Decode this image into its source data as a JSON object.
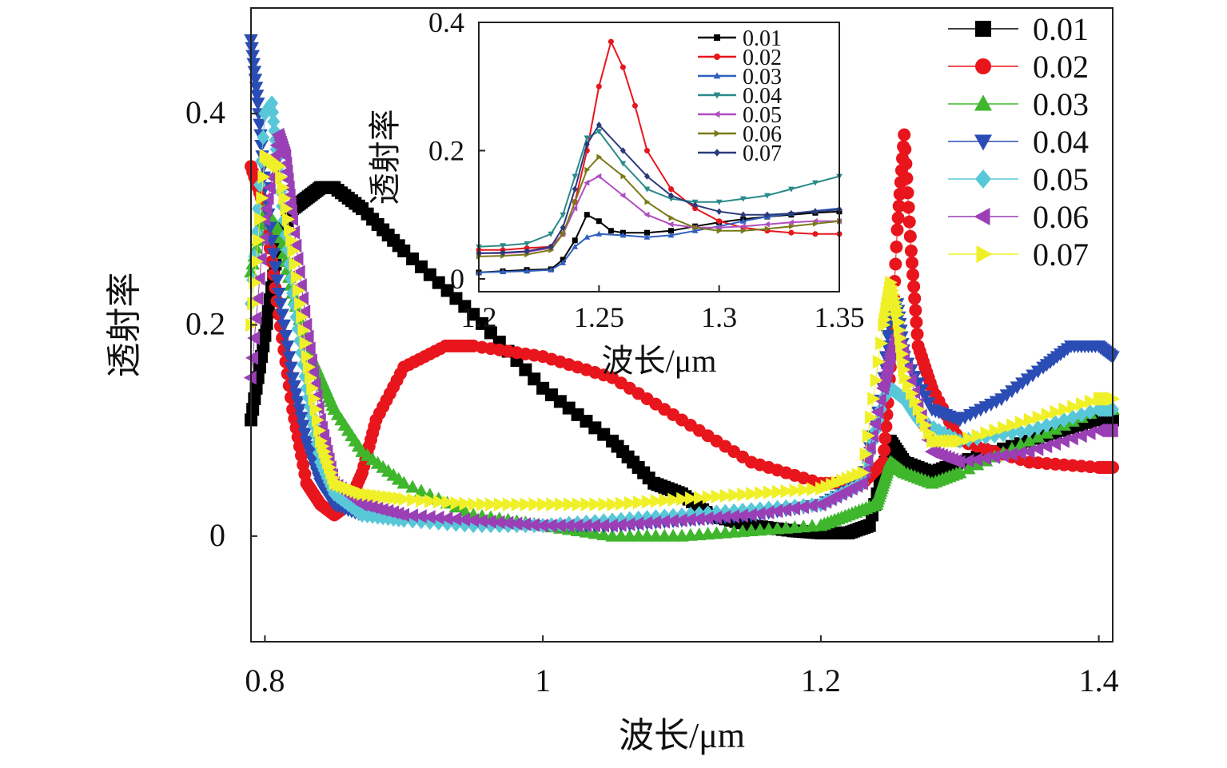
{
  "chart_data": [
    {
      "type": "scatter",
      "xlabel": "波长/μm",
      "ylabel": "透射率",
      "xlim": [
        0.79,
        1.41
      ],
      "ylim": [
        -0.1,
        0.5
      ],
      "xticks": [
        0.8,
        1,
        1.2,
        1.4
      ],
      "yticks": [
        0,
        0.2,
        0.4
      ],
      "xtick_labels": [
        "0.8",
        "1",
        "1.2",
        "1.4"
      ],
      "ytick_labels": [
        "0",
        "0.2",
        "0.4"
      ],
      "grid": false,
      "legend_position": "top-right",
      "series": [
        {
          "name": "0.01",
          "color": "#000000",
          "marker": "square",
          "x": [
            0.79,
            0.8,
            0.81,
            0.82,
            0.83,
            0.84,
            0.85,
            0.87,
            0.9,
            0.95,
            1.0,
            1.05,
            1.08,
            1.1,
            1.12,
            1.15,
            1.18,
            1.2,
            1.22,
            1.235,
            1.25,
            1.26,
            1.28,
            1.3,
            1.35,
            1.4,
            1.41
          ],
          "y": [
            0.11,
            0.19,
            0.28,
            0.31,
            0.32,
            0.33,
            0.33,
            0.31,
            0.27,
            0.21,
            0.14,
            0.09,
            0.05,
            0.04,
            0.02,
            0.01,
            0.005,
            0.003,
            0.003,
            0.01,
            0.09,
            0.07,
            0.06,
            0.07,
            0.09,
            0.11,
            0.11
          ]
        },
        {
          "name": "0.02",
          "color": "#e8151c",
          "marker": "circle",
          "x": [
            0.79,
            0.8,
            0.81,
            0.82,
            0.83,
            0.84,
            0.85,
            0.86,
            0.87,
            0.88,
            0.9,
            0.93,
            0.95,
            1.0,
            1.05,
            1.1,
            1.15,
            1.2,
            1.23,
            1.245,
            1.25,
            1.255,
            1.26,
            1.265,
            1.27,
            1.28,
            1.3,
            1.35,
            1.4,
            1.41
          ],
          "y": [
            0.35,
            0.31,
            0.21,
            0.12,
            0.05,
            0.03,
            0.02,
            0.03,
            0.06,
            0.11,
            0.16,
            0.18,
            0.18,
            0.17,
            0.15,
            0.11,
            0.07,
            0.05,
            0.05,
            0.07,
            0.16,
            0.29,
            0.38,
            0.27,
            0.18,
            0.14,
            0.09,
            0.07,
            0.065,
            0.065
          ]
        },
        {
          "name": "0.03",
          "color": "#3fb62c",
          "marker": "triangle-up",
          "x": [
            0.79,
            0.8,
            0.81,
            0.82,
            0.83,
            0.84,
            0.85,
            0.87,
            0.9,
            0.95,
            1.0,
            1.05,
            1.1,
            1.15,
            1.2,
            1.22,
            1.24,
            1.245,
            1.25,
            1.26,
            1.28,
            1.3,
            1.35,
            1.4,
            1.41
          ],
          "y": [
            0.25,
            0.31,
            0.29,
            0.23,
            0.18,
            0.15,
            0.12,
            0.08,
            0.05,
            0.02,
            0.01,
            0.0,
            0.0,
            0.005,
            0.01,
            0.02,
            0.03,
            0.05,
            0.07,
            0.06,
            0.05,
            0.06,
            0.09,
            0.12,
            0.12
          ]
        },
        {
          "name": "0.04",
          "color": "#2a4db5",
          "marker": "triangle-down",
          "x": [
            0.79,
            0.795,
            0.8,
            0.81,
            0.82,
            0.83,
            0.84,
            0.85,
            0.87,
            0.9,
            0.95,
            1.0,
            1.05,
            1.1,
            1.15,
            1.2,
            1.23,
            1.245,
            1.25,
            1.255,
            1.26,
            1.28,
            1.3,
            1.33,
            1.36,
            1.38,
            1.4,
            1.41
          ],
          "y": [
            0.47,
            0.41,
            0.33,
            0.23,
            0.15,
            0.09,
            0.05,
            0.03,
            0.02,
            0.015,
            0.01,
            0.01,
            0.01,
            0.015,
            0.02,
            0.03,
            0.05,
            0.14,
            0.22,
            0.22,
            0.17,
            0.12,
            0.11,
            0.13,
            0.16,
            0.18,
            0.18,
            0.17
          ]
        },
        {
          "name": "0.05",
          "color": "#58c8d8",
          "marker": "diamond",
          "x": [
            0.79,
            0.8,
            0.805,
            0.81,
            0.82,
            0.83,
            0.84,
            0.85,
            0.87,
            0.9,
            0.95,
            1.0,
            1.05,
            1.1,
            1.15,
            1.2,
            1.23,
            1.245,
            1.25,
            1.26,
            1.27,
            1.3,
            1.35,
            1.4,
            1.41
          ],
          "y": [
            0.22,
            0.4,
            0.41,
            0.34,
            0.23,
            0.14,
            0.07,
            0.04,
            0.02,
            0.015,
            0.01,
            0.01,
            0.015,
            0.02,
            0.025,
            0.03,
            0.05,
            0.13,
            0.14,
            0.13,
            0.11,
            0.09,
            0.1,
            0.12,
            0.12
          ]
        },
        {
          "name": "0.06",
          "color": "#9a3fb5",
          "marker": "triangle-left",
          "x": [
            0.79,
            0.8,
            0.81,
            0.815,
            0.82,
            0.83,
            0.84,
            0.85,
            0.87,
            0.9,
            0.95,
            1.0,
            1.05,
            1.1,
            1.15,
            1.2,
            1.23,
            1.245,
            1.25,
            1.255,
            1.26,
            1.28,
            1.3,
            1.35,
            1.4,
            1.41
          ],
          "y": [
            0.15,
            0.3,
            0.38,
            0.36,
            0.3,
            0.2,
            0.11,
            0.05,
            0.03,
            0.02,
            0.015,
            0.01,
            0.01,
            0.015,
            0.02,
            0.03,
            0.05,
            0.14,
            0.17,
            0.19,
            0.17,
            0.08,
            0.07,
            0.08,
            0.1,
            0.1
          ]
        },
        {
          "name": "0.07",
          "color": "#f0f028",
          "marker": "triangle-right",
          "x": [
            0.79,
            0.8,
            0.81,
            0.82,
            0.83,
            0.84,
            0.85,
            0.87,
            0.9,
            0.95,
            1.0,
            1.05,
            1.1,
            1.15,
            1.2,
            1.23,
            1.245,
            1.25,
            1.255,
            1.26,
            1.28,
            1.3,
            1.35,
            1.4,
            1.41
          ],
          "y": [
            0.2,
            0.36,
            0.35,
            0.27,
            0.17,
            0.09,
            0.05,
            0.04,
            0.035,
            0.03,
            0.03,
            0.03,
            0.035,
            0.04,
            0.045,
            0.06,
            0.2,
            0.24,
            0.21,
            0.15,
            0.09,
            0.09,
            0.11,
            0.13,
            0.13
          ]
        }
      ]
    },
    {
      "type": "line",
      "xlabel": "波长/μm",
      "ylabel": "透射率",
      "xlim": [
        1.2,
        1.35
      ],
      "ylim": [
        -0.02,
        0.4
      ],
      "xticks": [
        1.2,
        1.25,
        1.3,
        1.35
      ],
      "yticks": [
        0,
        0.2,
        0.4
      ],
      "xtick_labels": [
        "1.2",
        "1.25",
        "1.3",
        "1.35"
      ],
      "ytick_labels": [
        "0",
        "0.2",
        "0.4"
      ],
      "grid": false,
      "legend_position": "top-right",
      "series": [
        {
          "name": "0.01",
          "color": "#000000",
          "marker": "square",
          "x": [
            1.2,
            1.21,
            1.22,
            1.23,
            1.235,
            1.24,
            1.245,
            1.25,
            1.255,
            1.26,
            1.27,
            1.28,
            1.29,
            1.3,
            1.31,
            1.32,
            1.33,
            1.34,
            1.35
          ],
          "y": [
            0.01,
            0.012,
            0.014,
            0.015,
            0.03,
            0.06,
            0.1,
            0.09,
            0.075,
            0.072,
            0.072,
            0.075,
            0.082,
            0.088,
            0.093,
            0.097,
            0.1,
            0.103,
            0.105
          ]
        },
        {
          "name": "0.02",
          "color": "#e8151c",
          "marker": "circle",
          "x": [
            1.2,
            1.21,
            1.22,
            1.23,
            1.235,
            1.24,
            1.245,
            1.25,
            1.255,
            1.26,
            1.265,
            1.27,
            1.28,
            1.29,
            1.3,
            1.31,
            1.32,
            1.33,
            1.34,
            1.35
          ],
          "y": [
            0.045,
            0.045,
            0.048,
            0.05,
            0.07,
            0.12,
            0.2,
            0.3,
            0.37,
            0.33,
            0.27,
            0.2,
            0.14,
            0.11,
            0.09,
            0.08,
            0.075,
            0.072,
            0.07,
            0.07
          ]
        },
        {
          "name": "0.03",
          "color": "#2f5fbf",
          "marker": "triangle-up",
          "x": [
            1.2,
            1.21,
            1.22,
            1.23,
            1.235,
            1.24,
            1.245,
            1.25,
            1.26,
            1.27,
            1.28,
            1.29,
            1.3,
            1.31,
            1.32,
            1.33,
            1.34,
            1.35
          ],
          "y": [
            0.01,
            0.011,
            0.012,
            0.014,
            0.025,
            0.05,
            0.065,
            0.07,
            0.068,
            0.065,
            0.068,
            0.075,
            0.082,
            0.09,
            0.097,
            0.102,
            0.106,
            0.11
          ]
        },
        {
          "name": "0.04",
          "color": "#2a8a8a",
          "marker": "triangle-down",
          "x": [
            1.2,
            1.21,
            1.22,
            1.23,
            1.235,
            1.24,
            1.245,
            1.25,
            1.26,
            1.27,
            1.28,
            1.29,
            1.3,
            1.31,
            1.32,
            1.33,
            1.34,
            1.35
          ],
          "y": [
            0.05,
            0.052,
            0.055,
            0.07,
            0.1,
            0.16,
            0.22,
            0.23,
            0.18,
            0.14,
            0.125,
            0.12,
            0.12,
            0.125,
            0.13,
            0.14,
            0.15,
            0.16
          ]
        },
        {
          "name": "0.05",
          "color": "#b04fc0",
          "marker": "triangle-left",
          "x": [
            1.2,
            1.21,
            1.22,
            1.23,
            1.235,
            1.24,
            1.245,
            1.25,
            1.26,
            1.27,
            1.28,
            1.29,
            1.3,
            1.31,
            1.32,
            1.33,
            1.34,
            1.35
          ],
          "y": [
            0.04,
            0.04,
            0.042,
            0.048,
            0.07,
            0.11,
            0.15,
            0.16,
            0.13,
            0.1,
            0.085,
            0.08,
            0.08,
            0.082,
            0.085,
            0.088,
            0.09,
            0.09
          ]
        },
        {
          "name": "0.06",
          "color": "#7a7a1a",
          "marker": "triangle-right",
          "x": [
            1.2,
            1.21,
            1.22,
            1.23,
            1.235,
            1.24,
            1.245,
            1.25,
            1.26,
            1.27,
            1.28,
            1.29,
            1.3,
            1.31,
            1.32,
            1.33,
            1.34,
            1.35
          ],
          "y": [
            0.035,
            0.036,
            0.038,
            0.045,
            0.07,
            0.12,
            0.17,
            0.19,
            0.16,
            0.12,
            0.095,
            0.08,
            0.075,
            0.075,
            0.078,
            0.082,
            0.086,
            0.09
          ]
        },
        {
          "name": "0.07",
          "color": "#2a3a7a",
          "marker": "diamond",
          "x": [
            1.2,
            1.21,
            1.22,
            1.23,
            1.235,
            1.24,
            1.245,
            1.25,
            1.26,
            1.27,
            1.28,
            1.29,
            1.3,
            1.31,
            1.32,
            1.33,
            1.34,
            1.35
          ],
          "y": [
            0.04,
            0.041,
            0.043,
            0.05,
            0.08,
            0.14,
            0.21,
            0.24,
            0.2,
            0.16,
            0.13,
            0.115,
            0.105,
            0.1,
            0.1,
            0.102,
            0.105,
            0.108
          ]
        }
      ]
    }
  ]
}
